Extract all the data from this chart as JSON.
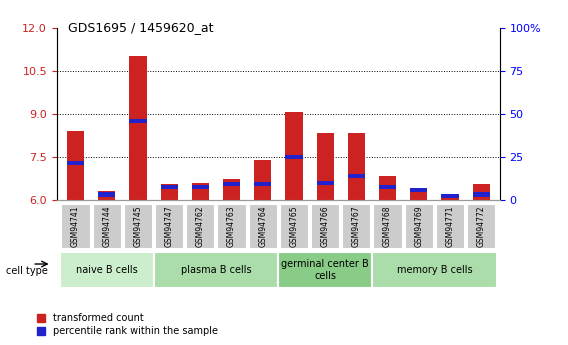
{
  "title": "GDS1695 / 1459620_at",
  "samples": [
    "GSM94741",
    "GSM94744",
    "GSM94745",
    "GSM94747",
    "GSM94762",
    "GSM94763",
    "GSM94764",
    "GSM94765",
    "GSM94766",
    "GSM94767",
    "GSM94768",
    "GSM94769",
    "GSM94771",
    "GSM94772"
  ],
  "transformed_count": [
    8.4,
    6.3,
    11.0,
    6.55,
    6.6,
    6.75,
    7.4,
    9.05,
    8.35,
    8.35,
    6.85,
    6.3,
    6.1,
    6.55
  ],
  "percentile_rank": [
    7.3,
    6.2,
    8.75,
    6.45,
    6.45,
    6.55,
    6.55,
    7.5,
    6.6,
    6.85,
    6.45,
    6.35,
    6.15,
    6.2
  ],
  "ylim_left": [
    6,
    12
  ],
  "ylim_right": [
    0,
    100
  ],
  "yticks_left": [
    6,
    7.5,
    9,
    10.5,
    12
  ],
  "yticks_right": [
    0,
    25,
    50,
    75,
    100
  ],
  "cell_groups": [
    {
      "label": "naive B cells",
      "start": 0,
      "end": 3,
      "color": "#cceecc"
    },
    {
      "label": "plasma B cells",
      "start": 3,
      "end": 7,
      "color": "#aaddaa"
    },
    {
      "label": "germinal center B\ncells",
      "start": 7,
      "end": 10,
      "color": "#88cc88"
    },
    {
      "label": "memory B cells",
      "start": 10,
      "end": 14,
      "color": "#aaddaa"
    }
  ],
  "bar_color_red": "#cc2222",
  "bar_color_blue": "#2222cc",
  "bar_width": 0.55,
  "background_color": "#ffffff",
  "tick_bg_color": "#cccccc",
  "legend_red_label": "transformed count",
  "legend_blue_label": "percentile rank within the sample",
  "cell_type_label": "cell type",
  "dotted_lines": [
    7.5,
    9,
    10.5
  ],
  "bar_base": 6
}
